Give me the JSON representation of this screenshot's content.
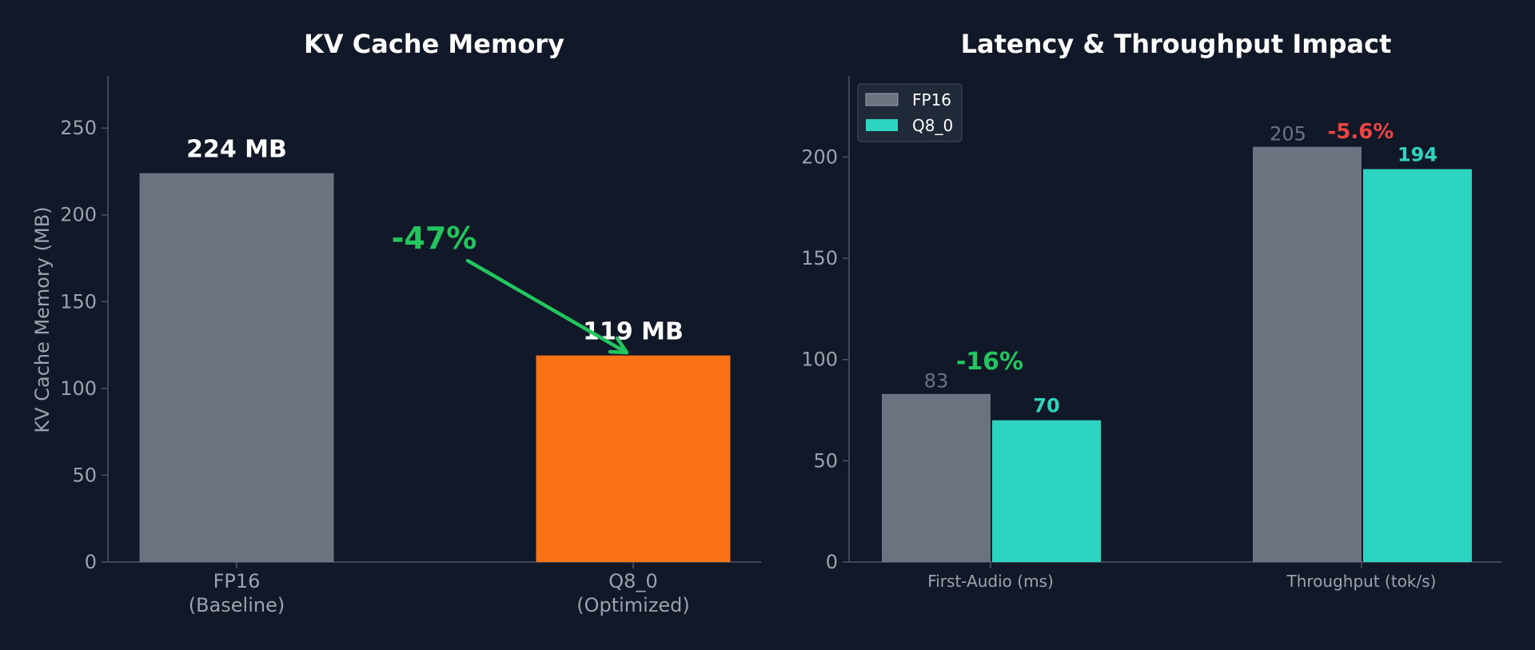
{
  "theme": {
    "background": "#111827",
    "axis_color": "#4b5563",
    "tick_text_color": "#9ca3af",
    "title_color": "#ffffff",
    "fp16_color": "#6b7280",
    "q8_left_color": "#f97316",
    "q8_right_color": "#2dd4bf",
    "improve_color": "#22c55e",
    "regress_color": "#ef4444"
  },
  "chart_data": [
    {
      "type": "bar",
      "title": "KV Cache Memory",
      "ylabel": "KV Cache Memory (MB)",
      "xlabel": "",
      "ylim": [
        0,
        280
      ],
      "yticks": [
        "0",
        "50",
        "100",
        "150",
        "200",
        "250"
      ],
      "categories": [
        "FP16\n(Baseline)",
        "Q8_0\n(Optimized)"
      ],
      "values": [
        224,
        119
      ],
      "value_labels": [
        "224 MB",
        "119 MB"
      ],
      "annotation": {
        "text": "-47%",
        "arrow": true
      },
      "grid": false
    },
    {
      "type": "bar",
      "title": "Latency & Throughput Impact",
      "xlabel": "",
      "ylabel": "",
      "ylim": [
        0,
        240
      ],
      "yticks": [
        "0",
        "50",
        "100",
        "150",
        "200"
      ],
      "categories": [
        "First-Audio (ms)",
        "Throughput (tok/s)"
      ],
      "series": [
        {
          "name": "FP16",
          "values": [
            83,
            205
          ],
          "labels": [
            "83",
            "205"
          ]
        },
        {
          "name": "Q8_0",
          "values": [
            70,
            194
          ],
          "labels": [
            "70",
            "194"
          ]
        }
      ],
      "annotations": [
        "-16%",
        "-5.6%"
      ],
      "legend": "top-left",
      "grid": false
    }
  ]
}
